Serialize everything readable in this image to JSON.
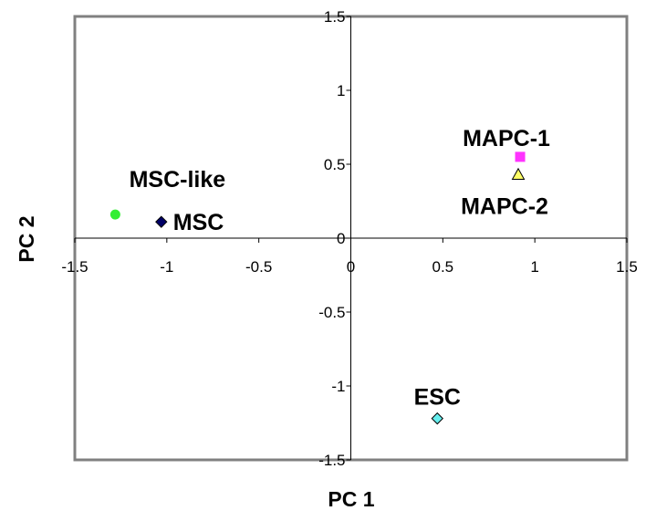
{
  "chart_data": {
    "type": "scatter",
    "xlabel": "PC 1",
    "ylabel": "PC 2",
    "xlim": [
      -1.5,
      1.5
    ],
    "ylim": [
      -1.5,
      1.5
    ],
    "x_ticks": [
      "-1.5",
      "-1",
      "-0.5",
      "0",
      "0.5",
      "1",
      "1.5"
    ],
    "y_ticks": [
      "1.5",
      "1",
      "0.5",
      "0",
      "-0.5",
      "-1",
      "-1.5"
    ],
    "grid": false,
    "legend": "none",
    "series": [
      {
        "name": "MSC-like",
        "x": -1.28,
        "y": 0.16,
        "marker": "circle",
        "color": "#33ee33"
      },
      {
        "name": "MSC",
        "x": -1.03,
        "y": 0.11,
        "marker": "diamond",
        "color": "#000066"
      },
      {
        "name": "MAPC-1",
        "x": 0.92,
        "y": 0.55,
        "marker": "square",
        "color": "#ff33ff"
      },
      {
        "name": "MAPC-2",
        "x": 0.91,
        "y": 0.43,
        "marker": "triangle",
        "color": "#ffff66"
      },
      {
        "name": "ESC",
        "x": 0.47,
        "y": -1.22,
        "marker": "diamond",
        "color": "#66eeee"
      }
    ]
  }
}
